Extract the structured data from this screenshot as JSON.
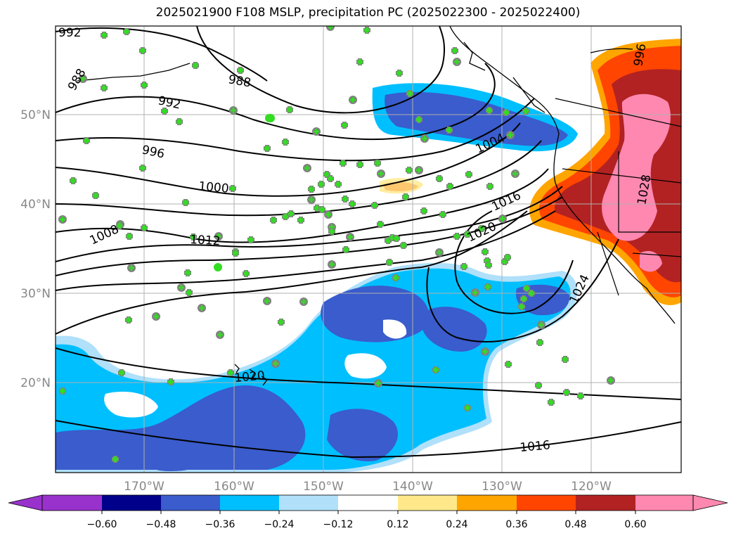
{
  "title": "2025021900 F108 MSLP, precipitation PC (2025022300 - 2025022400)",
  "map": {
    "lon_labels": [
      "170°W",
      "160°W",
      "150°W",
      "140°W",
      "130°W",
      "120°W"
    ],
    "lat_labels": [
      "50°N",
      "40°N",
      "30°N",
      "20°N"
    ],
    "isobar_labels": [
      "992",
      "988",
      "992",
      "996",
      "1000",
      "1004",
      "1008",
      "1012",
      "1016",
      "1020",
      "1024",
      "1028",
      "1016",
      "1020",
      "996",
      "988"
    ],
    "colors": {
      "neg_strong": "#3a5ccc",
      "neg_mid": "#00bfff",
      "neg_light": "#b0e0fa",
      "pos_light": "#ffe88a",
      "pos_orange": "#ffa500",
      "pos_redorange": "#ff4500",
      "pos_red": "#b22222",
      "pos_pink": "#ff88b0",
      "marker_fill": "#808080",
      "marker_plus": "#33dd22"
    }
  },
  "colorbar": {
    "tick_labels": [
      "−0.60",
      "−0.48",
      "−0.36",
      "−0.24",
      "−0.12",
      "0.12",
      "0.24",
      "0.36",
      "0.48",
      "0.60"
    ],
    "colors": [
      "#9932cc",
      "#00008b",
      "#3a5ccc",
      "#00bfff",
      "#b0e0fa",
      "#ffffff",
      "#ffe88a",
      "#ffa500",
      "#ff4500",
      "#b22222",
      "#ff88b0"
    ]
  }
}
